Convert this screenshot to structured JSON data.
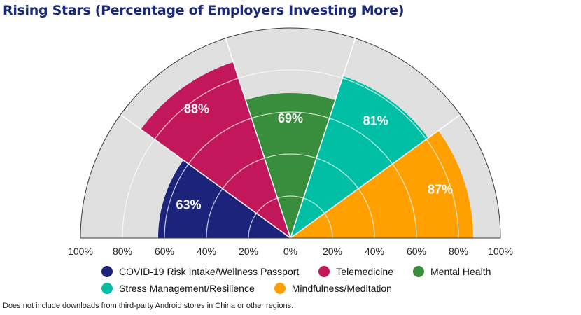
{
  "chart_data": {
    "type": "radial-bar",
    "title": "Rising Stars (Percentage of Employers Investing More)",
    "categories": [
      "COVID-19 Risk Intake/Wellness Passport",
      "Telemedicine",
      "Mental Health",
      "Stress Management/Resilience",
      "Mindfulness/Meditation"
    ],
    "values": [
      63,
      88,
      69,
      81,
      87
    ],
    "value_labels": [
      "63%",
      "88%",
      "69%",
      "81%",
      "87%"
    ],
    "colors": [
      "#1b237b",
      "#c2185b",
      "#388e3c",
      "#00bfa5",
      "#ffa000"
    ],
    "background_color": "#e0e0e0",
    "axis_max": 100,
    "axis_ticks_left": [
      "100%",
      "80%",
      "60%",
      "40%",
      "20%"
    ],
    "axis_ticks_right": [
      "0%",
      "20%",
      "40%",
      "60%",
      "80%",
      "100%"
    ],
    "grid": true,
    "legend_position": "bottom"
  },
  "legend": {
    "rows": [
      [
        {
          "label": "COVID-19 Risk Intake/Wellness Passport",
          "color": "#1b237b"
        },
        {
          "label": "Telemedicine",
          "color": "#c2185b"
        },
        {
          "label": "Mental Health",
          "color": "#388e3c"
        }
      ],
      [
        {
          "label": "Stress Management/Resilience",
          "color": "#00bfa5"
        },
        {
          "label": "Mindfulness/Meditation",
          "color": "#ffa000"
        }
      ]
    ]
  },
  "footnote": "Does not include downloads from third-party Android stores in China or other regions."
}
